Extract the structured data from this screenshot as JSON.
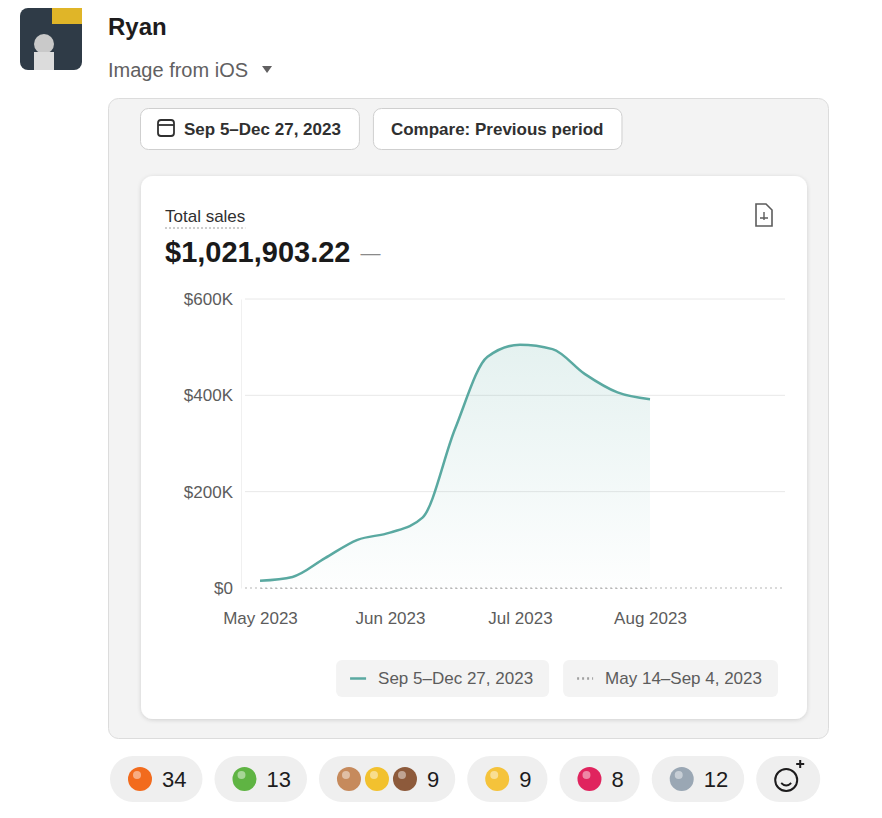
{
  "message": {
    "author": "Ryan",
    "subtitle": "Image from iOS",
    "reactions": [
      34,
      13,
      9,
      9,
      8,
      12
    ]
  },
  "card": {
    "date_range": "Sep 5–Dec 27, 2023",
    "compare": "Compare: Previous period",
    "change": "—"
  },
  "chart_data": {
    "type": "area",
    "title": "Total sales",
    "subtitle": "$1,021,903.22",
    "categories": [
      "May 2023",
      null,
      null,
      null,
      "Jun 2023",
      null,
      null,
      null,
      "Jul 2023",
      null,
      null,
      null,
      "Aug 2023"
    ],
    "series": [
      {
        "name": "Sep 5–Dec 27, 2023",
        "color": "#5aa9a1",
        "line_style": "solid",
        "values": [
          15000,
          23000,
          62000,
          100000,
          115000,
          146000,
          330000,
          480000,
          505000,
          496000,
          444000,
          406000,
          392000
        ]
      },
      {
        "name": "May 14–Sep 4, 2023",
        "color": "#a0a0a0",
        "line_style": "dotted",
        "values": [
          null,
          null,
          null,
          null,
          null,
          null,
          null,
          null,
          null,
          null,
          null,
          null,
          null
        ]
      }
    ],
    "ylim": [
      0,
      600000
    ],
    "yticks": [
      {
        "value": 0,
        "label": "$0"
      },
      {
        "value": 200000,
        "label": "$200K"
      },
      {
        "value": 400000,
        "label": "$400K"
      },
      {
        "value": 600000,
        "label": "$600K"
      }
    ],
    "grid": true,
    "legend": "bottom"
  }
}
